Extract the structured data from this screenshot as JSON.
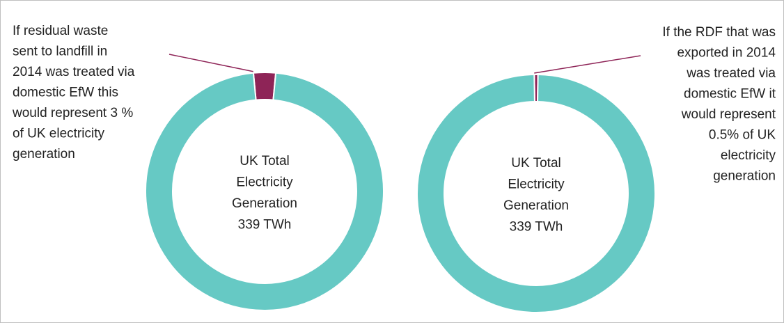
{
  "chart_data": [
    {
      "type": "donut",
      "values": [
        3,
        97
      ],
      "colors": [
        "#8e2457",
        "#66c9c4"
      ],
      "center_label": [
        "UK Total",
        "Electricity",
        "Generation",
        "339 TWh"
      ],
      "annotation": [
        "If residual waste",
        "sent to landfill in",
        "2014 was treated via",
        "domestic EfW this",
        "would represent 3 %",
        "of UK electricity",
        "generation"
      ]
    },
    {
      "type": "donut",
      "values": [
        0.5,
        99.5
      ],
      "colors": [
        "#8e2457",
        "#66c9c4"
      ],
      "center_label": [
        "UK Total",
        "Electricity",
        "Generation",
        "339 TWh"
      ],
      "annotation": [
        "If the RDF that was",
        "exported in 2014",
        "was treated via",
        "domestic EfW it",
        "would represent",
        "0.5% of UK",
        "electricity",
        "generation"
      ]
    }
  ]
}
